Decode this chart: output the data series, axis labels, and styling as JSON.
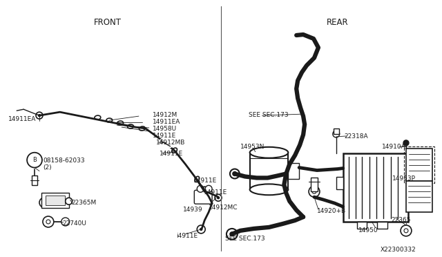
{
  "bg_color": "#ffffff",
  "fig_width": 6.4,
  "fig_height": 3.72,
  "dpi": 100,
  "front_label": "FRONT",
  "rear_label": "REAR",
  "diagram_id": "X22300332",
  "black": "#1a1a1a"
}
